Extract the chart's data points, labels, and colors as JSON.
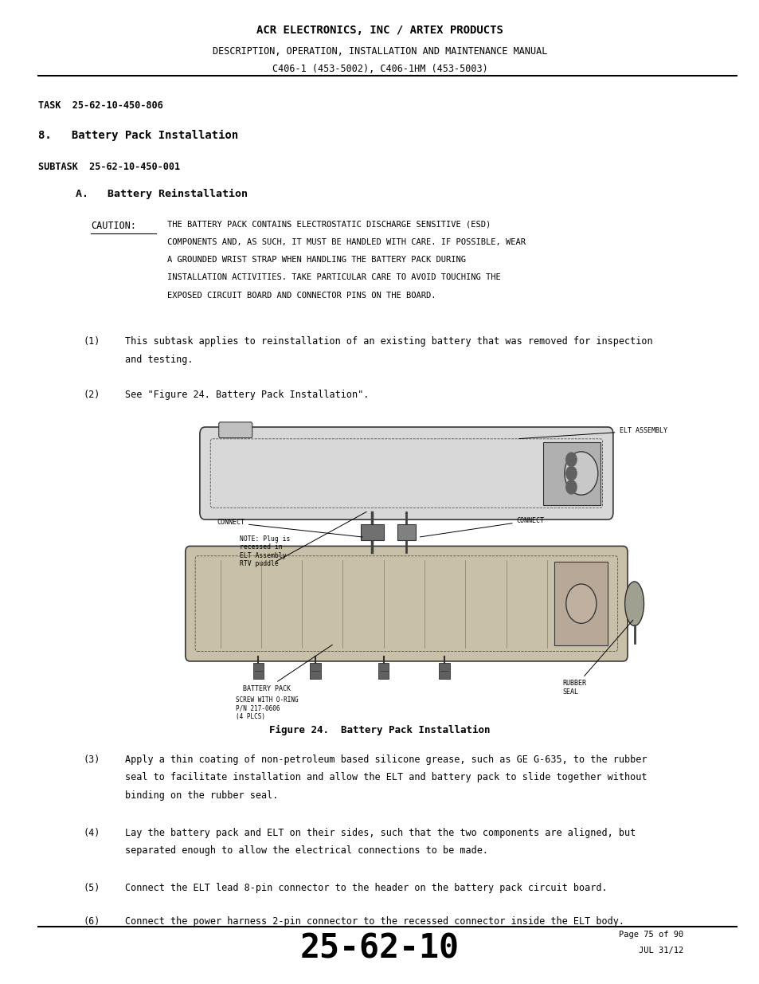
{
  "page_width": 9.54,
  "page_height": 12.35,
  "bg_color": "#ffffff",
  "header_line1": "ACR ELECTRONICS, INC / ARTEX PRODUCTS",
  "header_line2": "DESCRIPTION, OPERATION, INSTALLATION AND MAINTENANCE MANUAL",
  "header_line3": "C406-1 (453-5002), C406-1HM (453-5003)",
  "task_label": "TASK  25-62-10-450-806",
  "section_num": "8.",
  "section_title": "Battery Pack Installation",
  "subtask_label": "SUBTASK  25-62-10-450-001",
  "subsection_letter": "A.",
  "subsection_title": "Battery Reinstallation",
  "caution_label": "CAUTION:",
  "caution_text": "THE BATTERY PACK CONTAINS ELECTROSTATIC DISCHARGE SENSITIVE (ESD)\nCOMPONENTS AND, AS SUCH, IT MUST BE HANDLED WITH CARE. IF POSSIBLE, WEAR\nA GROUNDED WRIST STRAP WHEN HANDLING THE BATTERY PACK DURING\nINSTALLATION ACTIVITIES. TAKE PARTICULAR CARE TO AVOID TOUCHING THE\nEXPOSED CIRCUIT BOARD AND CONNECTOR PINS ON THE BOARD.",
  "item1_num": "(1)",
  "item1_text": "This subtask applies to reinstallation of an existing battery that was removed for inspection\nand testing.",
  "item2_num": "(2)",
  "item2_text": "See \"Figure 24. Battery Pack Installation\".",
  "figure_caption": "Figure 24.  Battery Pack Installation",
  "item3_num": "(3)",
  "item3_text": "Apply a thin coating of non-petroleum based silicone grease, such as GE G-635, to the rubber\nseal to facilitate installation and allow the ELT and battery pack to slide together without\nbinding on the rubber seal.",
  "item4_num": "(4)",
  "item4_text": "Lay the battery pack and ELT on their sides, such that the two components are aligned, but\nseparated enough to allow the electrical connections to be made.",
  "item5_num": "(5)",
  "item5_text": "Connect the ELT lead 8-pin connector to the header on the battery pack circuit board.",
  "item6_num": "(6)",
  "item6_text": "Connect the power harness 2-pin connector to the recessed connector inside the ELT body.",
  "footer_large": "25-62-10",
  "footer_page": "Page 75 of 90",
  "footer_date": "JUL 31/12"
}
